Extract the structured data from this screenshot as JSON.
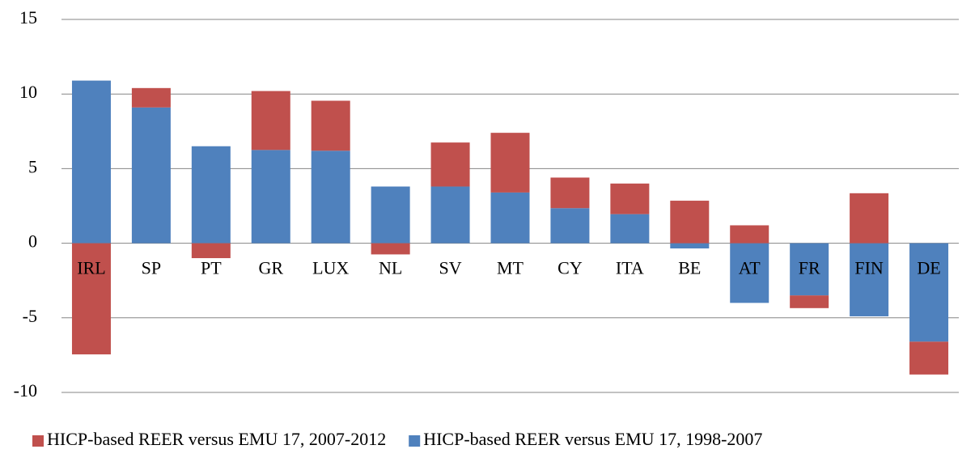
{
  "chart_data": {
    "type": "stacked_bar",
    "categories": [
      "IRL",
      "SP",
      "PT",
      "GR",
      "LUX",
      "NL",
      "SV",
      "MT",
      "CY",
      "ITA",
      "BE",
      "AT",
      "FR",
      "FIN",
      "DE"
    ],
    "series": [
      {
        "name": "HICP-based REER versus EMU 17, 2007-2012",
        "color": "#c0504d",
        "values": [
          -7.45,
          1.3,
          -1.0,
          3.95,
          3.35,
          -0.75,
          2.95,
          4.0,
          2.05,
          2.05,
          2.85,
          1.2,
          -0.85,
          3.35,
          -2.2
        ]
      },
      {
        "name": "HICP-based REER versus EMU 17, 1998-2007",
        "color": "#4f81bd",
        "values": [
          10.9,
          9.1,
          6.5,
          6.25,
          6.2,
          3.8,
          3.8,
          3.4,
          2.35,
          1.95,
          -0.35,
          -4.0,
          -3.5,
          -4.9,
          -6.6
        ]
      }
    ],
    "ylim": [
      -10,
      15
    ],
    "yticks": [
      -10,
      -5,
      0,
      5,
      10,
      15
    ],
    "grid": true,
    "legend": "bottom"
  }
}
